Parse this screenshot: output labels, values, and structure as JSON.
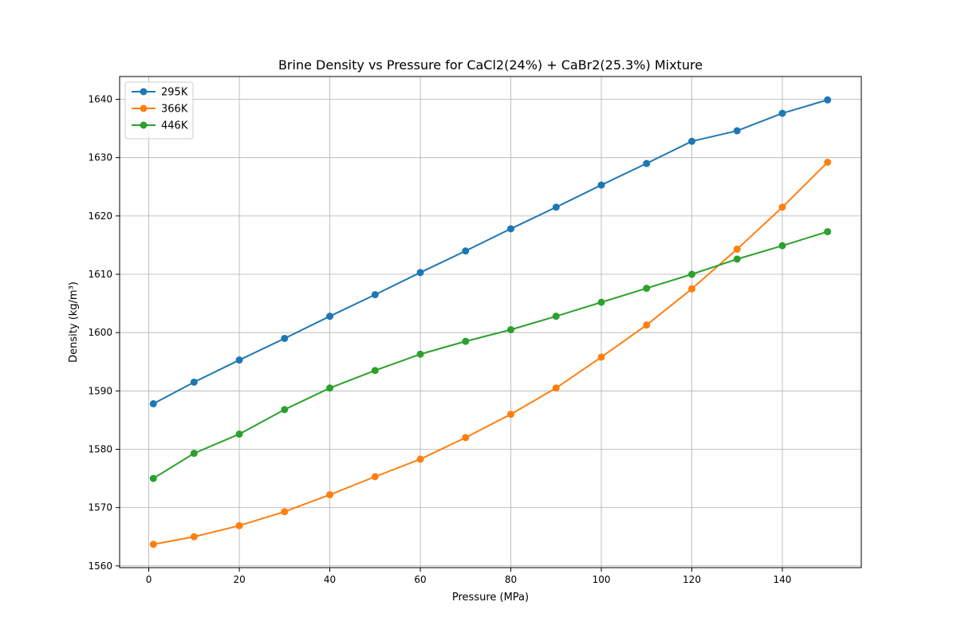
{
  "chart_data": {
    "type": "line",
    "title": "Brine Density vs Pressure for CaCl2(24%) + CaBr2(25.3%) Mixture",
    "xlabel": "Pressure (MPa)",
    "ylabel": "Density (kg/m³)",
    "xlim": [
      -6.45,
      157.45
    ],
    "ylim": [
      1559.7,
      1643.9
    ],
    "xticks": [
      0,
      20,
      40,
      60,
      80,
      100,
      120,
      140
    ],
    "yticks": [
      1560,
      1570,
      1580,
      1590,
      1600,
      1610,
      1620,
      1630,
      1640
    ],
    "grid": true,
    "legend_position": "top-left",
    "marker": "circle",
    "series": [
      {
        "name": "295K",
        "color": "#1f77b4",
        "x": [
          1,
          10,
          20,
          30,
          40,
          50,
          60,
          70,
          80,
          90,
          100,
          110,
          120,
          130,
          140,
          150
        ],
        "y": [
          1587.8,
          1591.5,
          1595.3,
          1599.0,
          1602.8,
          1606.5,
          1610.3,
          1614.0,
          1617.8,
          1621.5,
          1625.3,
          1629.0,
          1632.8,
          1634.6,
          1637.6,
          1639.9
        ]
      },
      {
        "name": "366K",
        "color": "#ff7f0e",
        "x": [
          1,
          10,
          20,
          30,
          40,
          50,
          60,
          70,
          80,
          90,
          100,
          110,
          120,
          130,
          140,
          150
        ],
        "y": [
          1563.7,
          1565.0,
          1566.9,
          1569.3,
          1572.2,
          1575.3,
          1578.3,
          1582.0,
          1586.0,
          1590.5,
          1595.8,
          1601.3,
          1607.5,
          1614.3,
          1621.5,
          1629.2
        ]
      },
      {
        "name": "446K",
        "color": "#2ca02c",
        "x": [
          1,
          10,
          20,
          30,
          40,
          50,
          60,
          70,
          80,
          90,
          100,
          110,
          120,
          130,
          140,
          150
        ],
        "y": [
          1575.0,
          1579.3,
          1582.6,
          1586.8,
          1590.5,
          1593.5,
          1596.3,
          1598.5,
          1600.5,
          1602.8,
          1605.2,
          1607.6,
          1610.0,
          1612.6,
          1614.9,
          1617.3
        ]
      }
    ]
  }
}
